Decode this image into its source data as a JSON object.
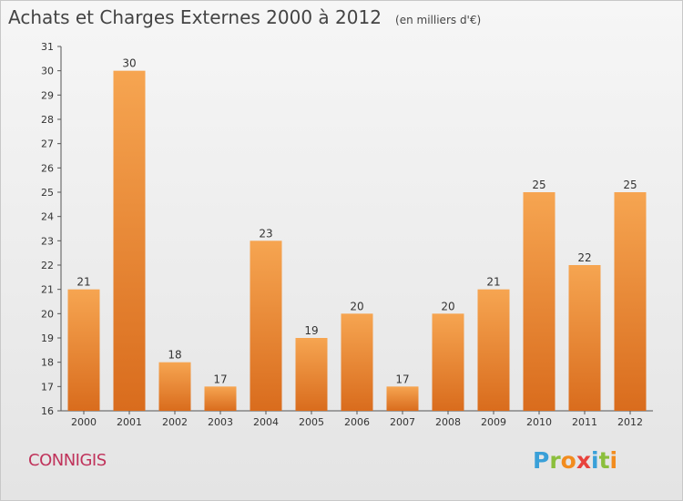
{
  "chart_data": {
    "type": "bar",
    "title": "Achats et Charges Externes 2000 à 2012",
    "subtitle": "(en milliers d'€)",
    "categories": [
      "2000",
      "2001",
      "2002",
      "2003",
      "2004",
      "2005",
      "2006",
      "2007",
      "2008",
      "2009",
      "2010",
      "2011",
      "2012"
    ],
    "values": [
      21,
      30,
      18,
      17,
      23,
      19,
      20,
      17,
      20,
      21,
      25,
      22,
      25
    ],
    "ylim": [
      16,
      31
    ],
    "yticks": [
      16,
      17,
      18,
      19,
      20,
      21,
      22,
      23,
      24,
      25,
      26,
      27,
      28,
      29,
      30,
      31
    ],
    "grid": false,
    "xlabel": "",
    "ylabel": "",
    "colors": {
      "bar_top": "#f6a551",
      "bar_bottom": "#d96c1d",
      "axis": "#555555",
      "text": "#333333"
    }
  },
  "commune": "CONNIGIS",
  "logo": {
    "letters": [
      "P",
      "r",
      "o",
      "x",
      "i",
      "t",
      "i"
    ],
    "colors": [
      "#3aa0d8",
      "#8bbf3c",
      "#f28c1e",
      "#e8423c",
      "#3aa0d8",
      "#8bbf3c",
      "#f28c1e"
    ]
  }
}
